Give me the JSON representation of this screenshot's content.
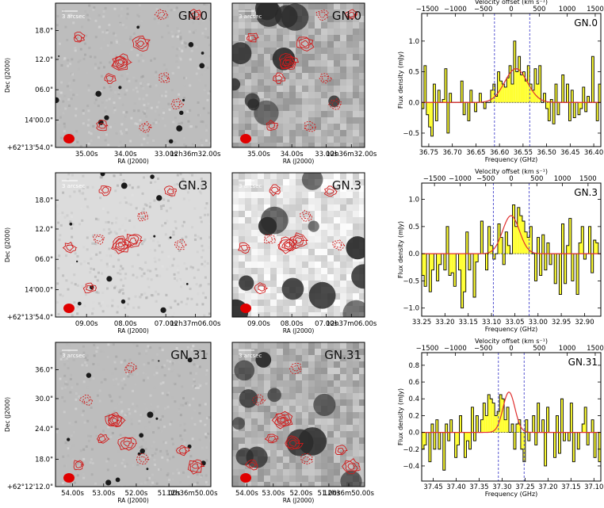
{
  "rows": [
    {
      "name": "GN.0",
      "image_panels": {
        "scale_label": "3 arcsec",
        "dec_ticks": [
          "18.0\"",
          "12.0\"",
          "06.0\"",
          "14'00.0\"",
          "+62°13'54.0\""
        ],
        "ra_ticks": [
          "35.00s",
          "34.00s",
          "33.00s",
          "12h36m32.00s"
        ],
        "xlabel": "RA (J2000)",
        "ylabel": "Dec (J2000)"
      },
      "spectrum": {
        "freq_ticks": [
          "36.75",
          "36.70",
          "36.65",
          "36.60",
          "36.55",
          "36.50",
          "36.45",
          "36.40"
        ],
        "vel_ticks": [
          "−1500",
          "−1000",
          "−500",
          "0",
          "500",
          "1000",
          "1500"
        ],
        "flux_ticks": [
          "1.0",
          "0.5",
          "0.0",
          "−0.5"
        ]
      }
    },
    {
      "name": "GN.3",
      "image_panels": {
        "scale_label": "3 arcsec",
        "dec_ticks": [
          "18.0\"",
          "12.0\"",
          "06.0\"",
          "14'00.0\"",
          "+62°13'54.0\""
        ],
        "ra_ticks": [
          "09.00s",
          "08.00s",
          "07.00s",
          "12h37m06.00s"
        ],
        "xlabel": "RA (J2000)",
        "ylabel": "Dec (J2000)"
      },
      "spectrum": {
        "freq_ticks": [
          "33.25",
          "33.20",
          "33.15",
          "33.10",
          "33.05",
          "33.00",
          "32.95",
          "32.90"
        ],
        "vel_ticks": [
          "−1500",
          "−1000",
          "−500",
          "0",
          "500",
          "1000",
          "1500"
        ],
        "flux_ticks": [
          "1.0",
          "0.5",
          "0.0",
          "−0.5",
          "−1.0"
        ]
      }
    },
    {
      "name": "GN.31",
      "image_panels": {
        "scale_label": "3 arcsec",
        "dec_ticks": [
          "36.0\"",
          "30.0\"",
          "24.0\"",
          "18.0\"",
          "+62°12'12.0\""
        ],
        "ra_ticks": [
          "54.00s",
          "53.00s",
          "52.00s",
          "51.00s",
          "12h36m50.00s"
        ],
        "xlabel": "RA (J2000)",
        "ylabel": "Dec (J2000)"
      },
      "spectrum": {
        "freq_ticks": [
          "37.45",
          "37.40",
          "37.35",
          "37.30",
          "37.25",
          "37.20",
          "37.15",
          "37.10"
        ],
        "vel_ticks": [
          "−1500",
          "−1000",
          "−500",
          "0",
          "500",
          "1000",
          "1500"
        ],
        "flux_ticks": [
          "0.8",
          "0.6",
          "0.4",
          "0.2",
          "0.0",
          "−0.2",
          "−0.4"
        ]
      }
    }
  ],
  "spectrum_labels": {
    "xlabel": "Frequency (GHz)",
    "ylabel": "Flux density (mJy)",
    "top_label": "Velocity offset (km s⁻¹)"
  },
  "colors": {
    "contour": "#d11a1a",
    "histogram_fill": "#ffff33",
    "fit_line": "#e03030",
    "vline": "#4444cc"
  },
  "chart_data": [
    {
      "type": "bar",
      "title": "GN.0",
      "xlabel": "Frequency (GHz)",
      "ylabel": "Flux density (mJy)",
      "x2label": "Velocity offset (km s⁻¹)",
      "xlim": [
        36.765,
        36.385
      ],
      "ylim": [
        -0.72,
        1.45
      ],
      "yticks": [
        1.0,
        0.5,
        0.0,
        -0.5
      ],
      "vel_range": [
        -1600,
        1600
      ],
      "line_window_vel": [
        -300,
        330
      ],
      "gauss": {
        "amp": 0.55,
        "center": 36.565,
        "sigma": 0.024
      },
      "values": [
        -0.1,
        0.6,
        -0.2,
        -0.4,
        -0.55,
        0.3,
        -0.3,
        0.2,
        0.0,
        0.05,
        0.55,
        -0.5,
        0.15,
        0.0,
        0.0,
        0.0,
        0.0,
        0.35,
        -0.2,
        0.0,
        -0.3,
        0.2,
        0.0,
        -0.15,
        0.0,
        0.15,
        0.0,
        -0.1,
        0.0,
        0.0,
        0.2,
        0.3,
        0.1,
        0.5,
        0.35,
        0.3,
        0.25,
        0.4,
        0.6,
        0.3,
        1.0,
        0.5,
        0.75,
        0.45,
        0.5,
        0.35,
        0.6,
        0.3,
        0.2,
        0.55,
        0.3,
        0.6,
        0.0,
        0.15,
        -0.1,
        -0.3,
        0.05,
        -0.35,
        0.3,
        -0.2,
        0.0,
        0.45,
        0.0,
        0.3,
        -0.3,
        0.2,
        -0.25,
        0.0,
        -0.2,
        -0.1,
        0.25,
        -0.15,
        0.1,
        0.0,
        0.75,
        0.0,
        -0.3,
        0.3
      ]
    },
    {
      "type": "bar",
      "title": "GN.3",
      "xlabel": "Frequency (GHz)",
      "ylabel": "Flux density (mJy)",
      "x2label": "Velocity offset (km s⁻¹)",
      "xlim": [
        33.25,
        32.865
      ],
      "ylim": [
        -1.15,
        1.3
      ],
      "yticks": [
        1.0,
        0.5,
        0.0,
        -0.5,
        -1.0
      ],
      "vel_range": [
        -1750,
        1750
      ],
      "line_window_vel": [
        -350,
        350
      ],
      "gauss": {
        "amp": 0.7,
        "center": 33.058,
        "sigma": 0.018
      },
      "values": [
        -0.4,
        -0.6,
        0.0,
        -0.7,
        -0.3,
        0.0,
        -0.5,
        -0.2,
        0.0,
        -0.3,
        0.5,
        -0.4,
        -0.35,
        -0.6,
        0.0,
        -0.3,
        -1.0,
        -0.7,
        0.4,
        -0.3,
        0.0,
        -0.8,
        -0.15,
        0.0,
        0.6,
        0.0,
        -0.3,
        0.5,
        0.15,
        -0.1,
        0.0,
        0.55,
        0.3,
        -0.2,
        0.4,
        0.15,
        0.0,
        0.9,
        0.5,
        0.85,
        0.7,
        0.6,
        0.4,
        0.3,
        0.5,
        0.0,
        -0.5,
        0.3,
        -0.4,
        0.35,
        -0.3,
        0.2,
        -0.2,
        0.0,
        -0.55,
        0.0,
        -0.75,
        0.55,
        -0.55,
        0.15,
        0.65,
        -0.5,
        0.0,
        -0.75,
        0.2,
        0.5,
        -0.1,
        0.0,
        0.5,
        -0.35,
        0.25,
        0.2,
        0.0
      ]
    },
    {
      "type": "bar",
      "title": "GN.31",
      "xlabel": "Frequency (GHz)",
      "ylabel": "Flux density (mJy)",
      "x2label": "Velocity offset (km s⁻¹)",
      "xlim": [
        37.475,
        37.085
      ],
      "ylim": [
        -0.58,
        0.95
      ],
      "yticks": [
        0.8,
        0.6,
        0.4,
        0.2,
        0.0,
        -0.2,
        -0.4
      ],
      "vel_range": [
        -1600,
        1600
      ],
      "line_window_vel": [
        -230,
        230
      ],
      "gauss": {
        "amp": 0.48,
        "center": 37.285,
        "sigma": 0.013
      },
      "values": [
        -0.2,
        -0.15,
        0.0,
        -0.35,
        0.1,
        -0.2,
        0.15,
        -0.2,
        0.0,
        -0.45,
        0.1,
        -0.1,
        0.15,
        0.0,
        -0.3,
        -0.15,
        0.2,
        0.0,
        -0.3,
        -0.1,
        -0.2,
        0.3,
        -0.1,
        0.2,
        0.0,
        0.15,
        0.35,
        0.2,
        0.45,
        0.4,
        0.35,
        0.2,
        0.25,
        0.45,
        0.4,
        0.15,
        0.3,
        0.0,
        0.1,
        -0.2,
        0.1,
        0.15,
        -0.2,
        -0.35,
        0.15,
        -0.1,
        0.0,
        0.2,
        -0.15,
        0.35,
        0.0,
        0.15,
        -0.4,
        0.3,
        0.0,
        0.0,
        -0.3,
        0.2,
        -0.25,
        0.4,
        -0.1,
        0.0,
        -0.1,
        0.35,
        -0.35,
        0.0,
        -0.2,
        0.0,
        0.1,
        0.3,
        -0.15,
        0.0,
        0.15,
        -0.3,
        0.0,
        -0.35
      ]
    }
  ]
}
